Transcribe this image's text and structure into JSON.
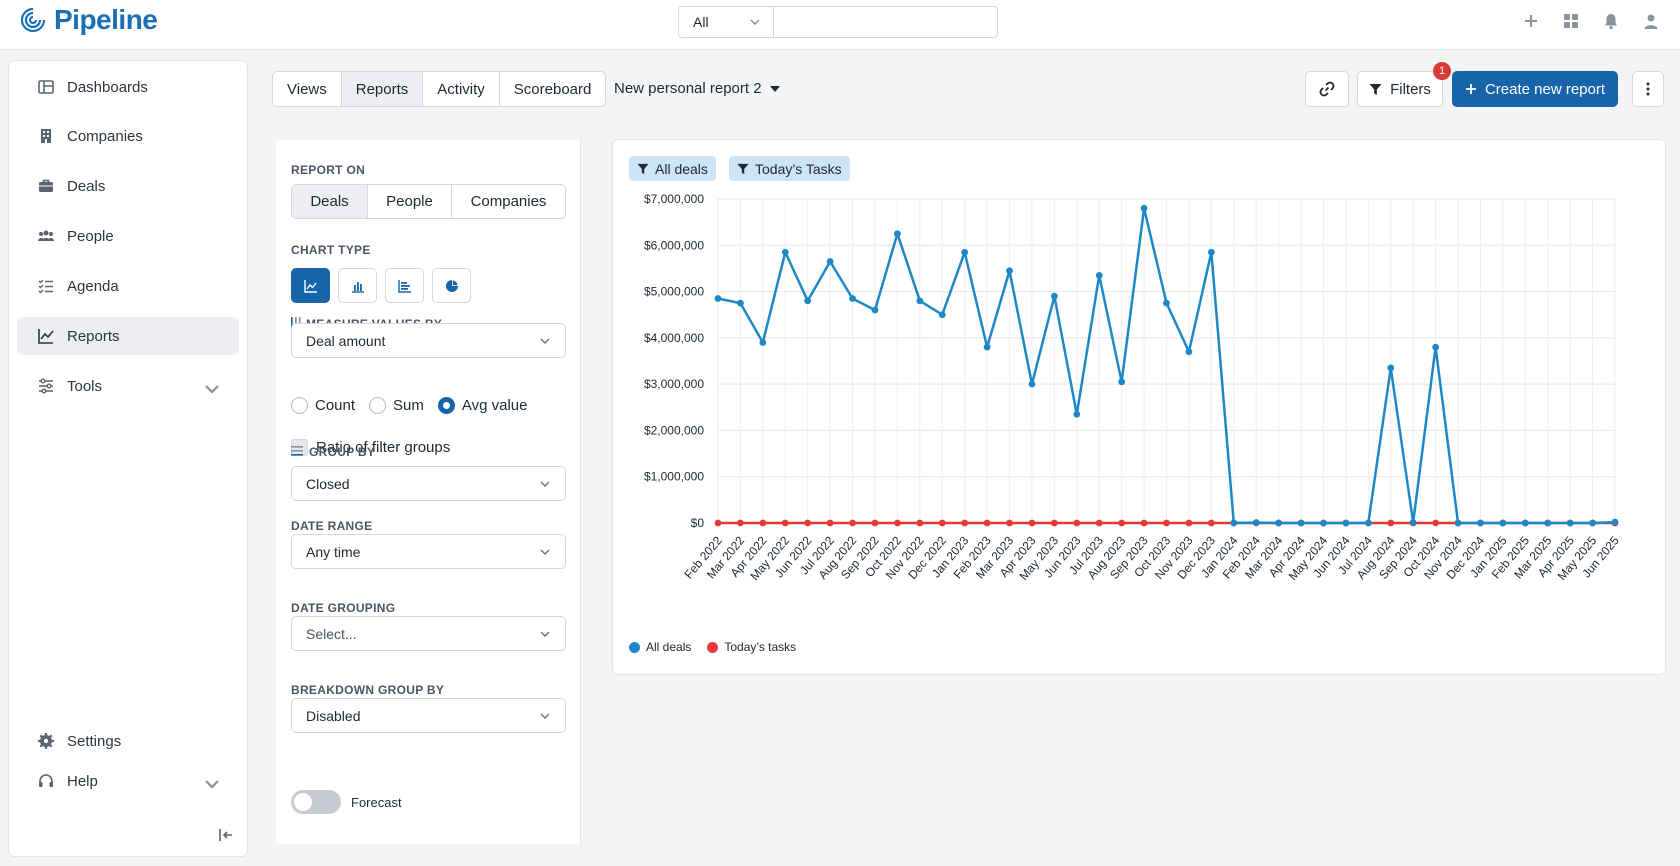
{
  "app": {
    "name": "Pipeline"
  },
  "search": {
    "scope": "All",
    "placeholder": ""
  },
  "sidebar": {
    "items": [
      {
        "label": "Dashboards",
        "icon": "dashboard-icon"
      },
      {
        "label": "Companies",
        "icon": "building-icon"
      },
      {
        "label": "Deals",
        "icon": "briefcase-icon"
      },
      {
        "label": "People",
        "icon": "people-icon"
      },
      {
        "label": "Agenda",
        "icon": "checklist-icon"
      },
      {
        "label": "Reports",
        "icon": "line-chart-icon",
        "active": true
      },
      {
        "label": "Tools",
        "icon": "sliders-icon",
        "expandable": true
      }
    ],
    "bottom": [
      {
        "label": "Settings",
        "icon": "gear-icon"
      },
      {
        "label": "Help",
        "icon": "headset-icon",
        "expandable": true
      }
    ]
  },
  "tabs": [
    {
      "label": "Views"
    },
    {
      "label": "Reports",
      "active": true
    },
    {
      "label": "Activity"
    },
    {
      "label": "Scoreboard"
    }
  ],
  "report": {
    "title": "New personal report 2"
  },
  "toolbar": {
    "filters_label": "Filters",
    "filters_count": "1",
    "create_label": "Create new report"
  },
  "panel": {
    "report_on_label": "REPORT ON",
    "report_on_options": [
      "Deals",
      "People",
      "Companies"
    ],
    "chart_type_label": "CHART TYPE",
    "measure_label": "MEASURE VALUES BY",
    "measure_value": "Deal amount",
    "aggregations": [
      {
        "label": "Count",
        "checked": false
      },
      {
        "label": "Sum",
        "checked": false
      },
      {
        "label": "Avg value",
        "checked": true
      }
    ],
    "ratio_label": "Ratio of filter groups",
    "group_by_label": "GROUP BY",
    "group_by_value": "Closed",
    "date_range_label": "DATE RANGE",
    "date_range_value": "Any time",
    "date_grouping_label": "DATE GROUPING",
    "date_grouping_placeholder": "Select...",
    "breakdown_label": "BREAKDOWN GROUP BY",
    "breakdown_value": "Disabled",
    "forecast_label": "Forecast",
    "forecast_on": false
  },
  "chart_filters": [
    "All deals",
    "Today’s Tasks"
  ],
  "colors": {
    "accent": "#1864ab",
    "series_deals": "#1e88c7",
    "series_tasks": "#e53935"
  },
  "chart_data": {
    "type": "line",
    "x": [
      "Feb 2022",
      "Mar 2022",
      "Apr 2022",
      "May 2022",
      "Jun 2022",
      "Jul 2022",
      "Aug 2022",
      "Sep 2022",
      "Oct 2022",
      "Nov 2022",
      "Dec 2022",
      "Jan 2023",
      "Feb 2023",
      "Mar 2023",
      "Apr 2023",
      "May 2023",
      "Jun 2023",
      "Jul 2023",
      "Aug 2023",
      "Sep 2023",
      "Oct 2023",
      "Nov 2023",
      "Dec 2023",
      "Jan 2024",
      "Feb 2024",
      "Mar 2024",
      "Apr 2024",
      "May 2024",
      "Jun 2024",
      "Jul 2024",
      "Aug 2024",
      "Sep 2024",
      "Oct 2024",
      "Nov 2024",
      "Dec 2024",
      "Jan 2025",
      "Feb 2025",
      "Mar 2025",
      "Apr 2025",
      "May 2025",
      "Jun 2025"
    ],
    "series": [
      {
        "name": "All deals",
        "color": "#1e88c7",
        "values": [
          4850000,
          4750000,
          3900000,
          5850000,
          4800000,
          5650000,
          4850000,
          4600000,
          6250000,
          4800000,
          4500000,
          5850000,
          3800000,
          5450000,
          3000000,
          4900000,
          2350000,
          5350000,
          3050000,
          6800000,
          4750000,
          3700000,
          5850000,
          0,
          10000,
          0,
          0,
          0,
          0,
          0,
          3350000,
          10000,
          3800000,
          0,
          0,
          0,
          0,
          0,
          0,
          0,
          20000
        ]
      },
      {
        "name": "Today’s tasks",
        "color": "#e53935",
        "values": [
          0,
          0,
          0,
          0,
          0,
          0,
          0,
          0,
          0,
          0,
          0,
          0,
          0,
          0,
          0,
          0,
          0,
          0,
          0,
          0,
          0,
          0,
          0,
          0,
          0,
          0,
          0,
          0,
          0,
          0,
          0,
          0,
          0,
          0,
          0,
          0,
          0,
          0,
          0,
          0,
          0
        ]
      }
    ],
    "y_ticks": [
      "$0",
      "$1,000,000",
      "$2,000,000",
      "$3,000,000",
      "$4,000,000",
      "$5,000,000",
      "$6,000,000",
      "$7,000,000"
    ],
    "ylim": [
      0,
      7000000
    ],
    "grid": true,
    "legend": "bottom-left"
  }
}
